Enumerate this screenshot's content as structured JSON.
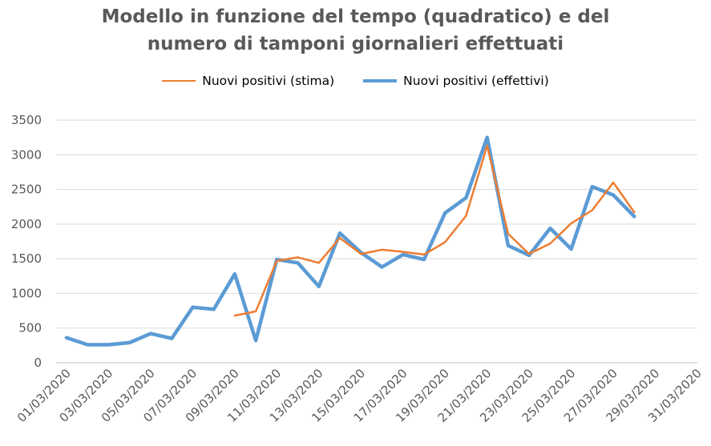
{
  "chart_data": {
    "type": "line",
    "title_line1": "Modello in funzione del tempo (quadratico) e del",
    "title_line2": "numero di tamponi giornalieri effettuati",
    "title": "Modello in funzione del tempo (quadratico) e del numero di tamponi giornalieri effettuati",
    "xlabel": "",
    "ylabel": "",
    "ylim": [
      0,
      3500
    ],
    "yticks": [
      0,
      500,
      1000,
      1500,
      2000,
      2500,
      3000,
      3500
    ],
    "x": [
      "01/03/2020",
      "02/03/2020",
      "03/03/2020",
      "04/03/2020",
      "05/03/2020",
      "06/03/2020",
      "07/03/2020",
      "08/03/2020",
      "09/03/2020",
      "10/03/2020",
      "11/03/2020",
      "12/03/2020",
      "13/03/2020",
      "14/03/2020",
      "15/03/2020",
      "16/03/2020",
      "17/03/2020",
      "18/03/2020",
      "19/03/2020",
      "20/03/2020",
      "21/03/2020",
      "22/03/2020",
      "23/03/2020",
      "24/03/2020",
      "25/03/2020",
      "26/03/2020",
      "27/03/2020",
      "28/03/2020",
      "29/03/2020",
      "30/03/2020",
      "31/03/2020"
    ],
    "xtick_labels": [
      "01/03/2020",
      "03/03/2020",
      "05/03/2020",
      "07/03/2020",
      "09/03/2020",
      "11/03/2020",
      "13/03/2020",
      "15/03/2020",
      "17/03/2020",
      "19/03/2020",
      "21/03/2020",
      "23/03/2020",
      "25/03/2020",
      "27/03/2020",
      "29/03/2020",
      "31/03/2020"
    ],
    "grid": true,
    "legend_position": "top",
    "series": [
      {
        "name": "Nuovi positivi (stima)",
        "color": "#ED7D31",
        "values": [
          null,
          null,
          null,
          null,
          null,
          null,
          null,
          null,
          680,
          740,
          1470,
          1520,
          1440,
          1800,
          1570,
          1630,
          1600,
          1560,
          1740,
          2120,
          3130,
          1860,
          1570,
          1720,
          2010,
          2200,
          2600,
          2170,
          null,
          null,
          null
        ]
      },
      {
        "name": "Nuovi positivi (effettivi)",
        "color": "#5B9BD5",
        "values": [
          360,
          260,
          260,
          290,
          420,
          350,
          800,
          770,
          1280,
          320,
          1490,
          1440,
          1100,
          1870,
          1590,
          1380,
          1560,
          1490,
          2160,
          2380,
          3250,
          1690,
          1550,
          1940,
          1640,
          2540,
          2420,
          2110,
          null,
          null,
          null
        ]
      }
    ]
  }
}
